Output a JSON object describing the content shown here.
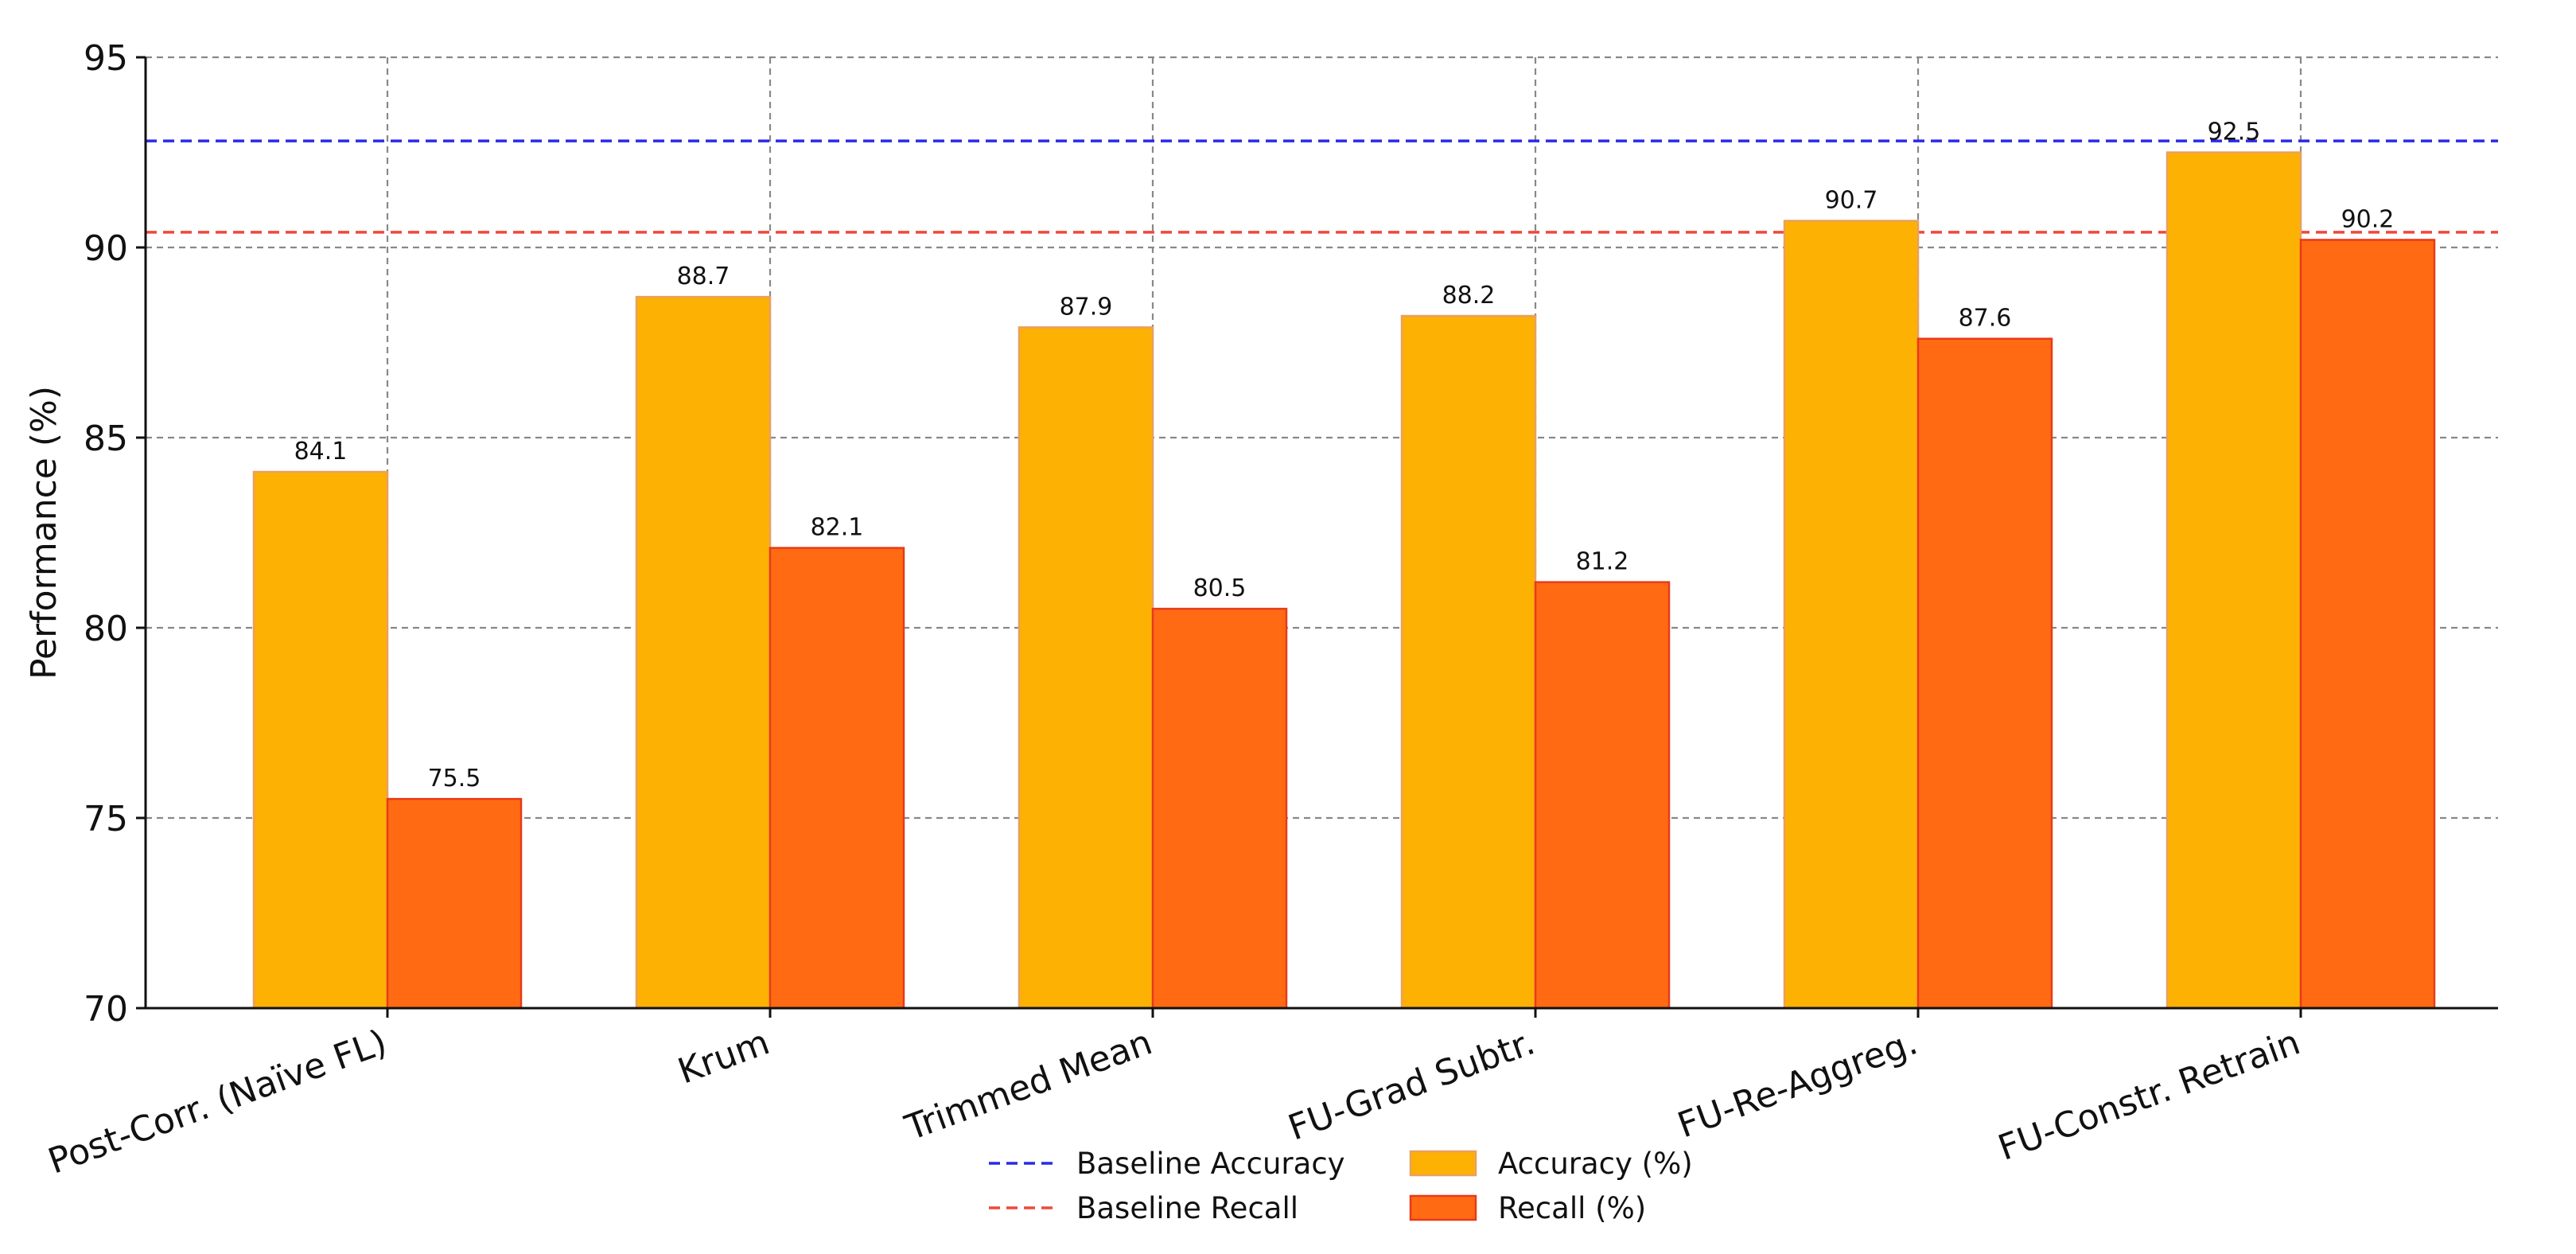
{
  "chart_data": {
    "type": "bar",
    "title": "",
    "xlabel": "",
    "ylabel": "Performance (%)",
    "ylim": [
      70,
      95
    ],
    "yticks": [
      70,
      75,
      80,
      85,
      90,
      95
    ],
    "grid": true,
    "categories": [
      "Post-Corr. (Naïve FL)",
      "Krum",
      "Trimmed Mean",
      "FU-Grad Subtr.",
      "FU-Re-Aggreg.",
      "FU-Constr. Retrain"
    ],
    "series": [
      {
        "name": "Accuracy (%)",
        "values": [
          84.1,
          88.7,
          87.9,
          88.2,
          90.7,
          92.5
        ],
        "color": "#FDB103",
        "edge": "#E8A060"
      },
      {
        "name": "Recall (%)",
        "values": [
          75.5,
          82.1,
          80.5,
          81.2,
          87.6,
          90.2
        ],
        "color": "#FF6A13",
        "edge": "#E83A1A"
      }
    ],
    "reference_lines": [
      {
        "name": "Baseline Accuracy",
        "value": 92.8,
        "color": "#2A2AE8"
      },
      {
        "name": "Baseline Recall",
        "value": 90.4,
        "color": "#F0483A"
      }
    ],
    "legend_position": "bottom-center"
  }
}
